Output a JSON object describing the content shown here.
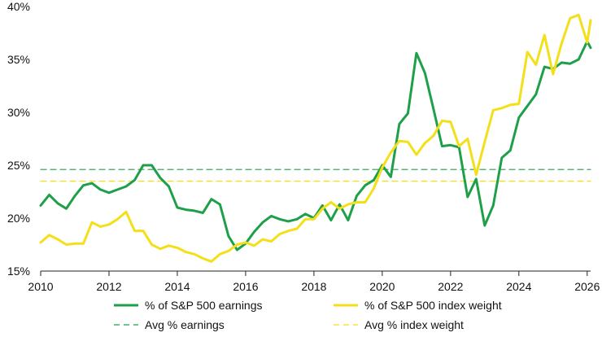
{
  "chart_data": {
    "type": "line",
    "title": "",
    "xlabel": "",
    "ylabel": "",
    "xlim": [
      2010,
      2026.1
    ],
    "ylim": [
      15,
      40
    ],
    "x_ticks": [
      2010,
      2012,
      2014,
      2016,
      2018,
      2020,
      2022,
      2024,
      2026
    ],
    "x_tick_labels": [
      "2010",
      "2012",
      "2014",
      "2016",
      "2018",
      "2020",
      "2022",
      "2024",
      "2026"
    ],
    "y_ticks": [
      15,
      20,
      25,
      30,
      35,
      40
    ],
    "y_tick_labels": [
      "15%",
      "20%",
      "25%",
      "30%",
      "35%",
      "40%"
    ],
    "grid": false,
    "legend_position": "bottom",
    "series": [
      {
        "name": "% of S&P 500 earnings",
        "color": "#1ea04a",
        "style": "solid",
        "x": [
          2010.0,
          2010.25,
          2010.5,
          2010.75,
          2011.0,
          2011.25,
          2011.5,
          2011.75,
          2012.0,
          2012.25,
          2012.5,
          2012.75,
          2013.0,
          2013.25,
          2013.5,
          2013.75,
          2014.0,
          2014.25,
          2014.5,
          2014.75,
          2015.0,
          2015.25,
          2015.5,
          2015.75,
          2016.0,
          2016.25,
          2016.5,
          2016.75,
          2017.0,
          2017.25,
          2017.5,
          2017.75,
          2018.0,
          2018.25,
          2018.5,
          2018.75,
          2019.0,
          2019.25,
          2019.5,
          2019.75,
          2020.0,
          2020.25,
          2020.5,
          2020.75,
          2021.0,
          2021.25,
          2021.5,
          2021.75,
          2022.0,
          2022.25,
          2022.5,
          2022.75,
          2023.0,
          2023.25,
          2023.5,
          2023.75,
          2024.0,
          2024.25,
          2024.5,
          2024.75,
          2025.0,
          2025.25,
          2025.5,
          2025.75,
          2026.0,
          2026.1
        ],
        "values": [
          21.2,
          22.2,
          21.4,
          20.9,
          22.1,
          23.1,
          23.3,
          22.7,
          22.4,
          22.7,
          23.0,
          23.6,
          25.0,
          25.0,
          23.8,
          23.0,
          21.0,
          20.8,
          20.7,
          20.5,
          21.8,
          21.3,
          18.3,
          17.0,
          17.6,
          18.7,
          19.6,
          20.2,
          19.9,
          19.7,
          19.9,
          20.4,
          20.0,
          21.2,
          19.8,
          21.3,
          19.8,
          22.1,
          23.1,
          23.6,
          25.0,
          23.9,
          28.9,
          29.9,
          35.6,
          33.7,
          30.3,
          26.8,
          26.9,
          26.7,
          22.0,
          23.7,
          19.3,
          21.2,
          25.7,
          26.4,
          29.5,
          30.6,
          31.7,
          34.3,
          34.1,
          34.7,
          34.6,
          35.0,
          36.7,
          36.1
        ]
      },
      {
        "name": "% of S&P 500 index weight",
        "color": "#f3df1a",
        "style": "solid",
        "x": [
          2010.0,
          2010.25,
          2010.5,
          2010.75,
          2011.0,
          2011.25,
          2011.5,
          2011.75,
          2012.0,
          2012.25,
          2012.5,
          2012.75,
          2013.0,
          2013.25,
          2013.5,
          2013.75,
          2014.0,
          2014.25,
          2014.5,
          2014.75,
          2015.0,
          2015.25,
          2015.5,
          2015.75,
          2016.0,
          2016.25,
          2016.5,
          2016.75,
          2017.0,
          2017.25,
          2017.5,
          2017.75,
          2018.0,
          2018.25,
          2018.5,
          2018.75,
          2019.0,
          2019.25,
          2019.5,
          2019.75,
          2020.0,
          2020.25,
          2020.5,
          2020.75,
          2021.0,
          2021.25,
          2021.5,
          2021.75,
          2022.0,
          2022.25,
          2022.5,
          2022.75,
          2023.0,
          2023.25,
          2023.5,
          2023.75,
          2024.0,
          2024.25,
          2024.5,
          2024.75,
          2025.0,
          2025.25,
          2025.5,
          2025.75,
          2026.0,
          2026.1
        ],
        "values": [
          17.7,
          18.4,
          18.0,
          17.5,
          17.6,
          17.6,
          19.6,
          19.2,
          19.4,
          19.9,
          20.6,
          18.8,
          18.8,
          17.5,
          17.1,
          17.4,
          17.2,
          16.8,
          16.6,
          16.2,
          15.9,
          16.6,
          16.9,
          17.5,
          17.7,
          17.4,
          18.0,
          17.8,
          18.5,
          18.8,
          19.0,
          19.9,
          19.9,
          20.9,
          21.5,
          20.9,
          21.3,
          21.5,
          21.5,
          22.8,
          24.8,
          26.2,
          27.3,
          27.2,
          26.0,
          27.1,
          27.8,
          29.2,
          29.1,
          26.8,
          27.5,
          24.1,
          27.2,
          30.2,
          30.4,
          30.7,
          30.8,
          35.7,
          34.5,
          37.3,
          33.6,
          36.5,
          38.9,
          39.2,
          36.6,
          38.7
        ]
      },
      {
        "name": "Avg % earnings",
        "color": "#1ea04a",
        "style": "dashed",
        "x": [
          2010.0,
          2026.1
        ],
        "values": [
          24.6,
          24.6
        ]
      },
      {
        "name": "Avg % index weight",
        "color": "#f3df1a",
        "style": "dashed",
        "x": [
          2010.0,
          2026.1
        ],
        "values": [
          23.5,
          23.5
        ]
      }
    ]
  }
}
